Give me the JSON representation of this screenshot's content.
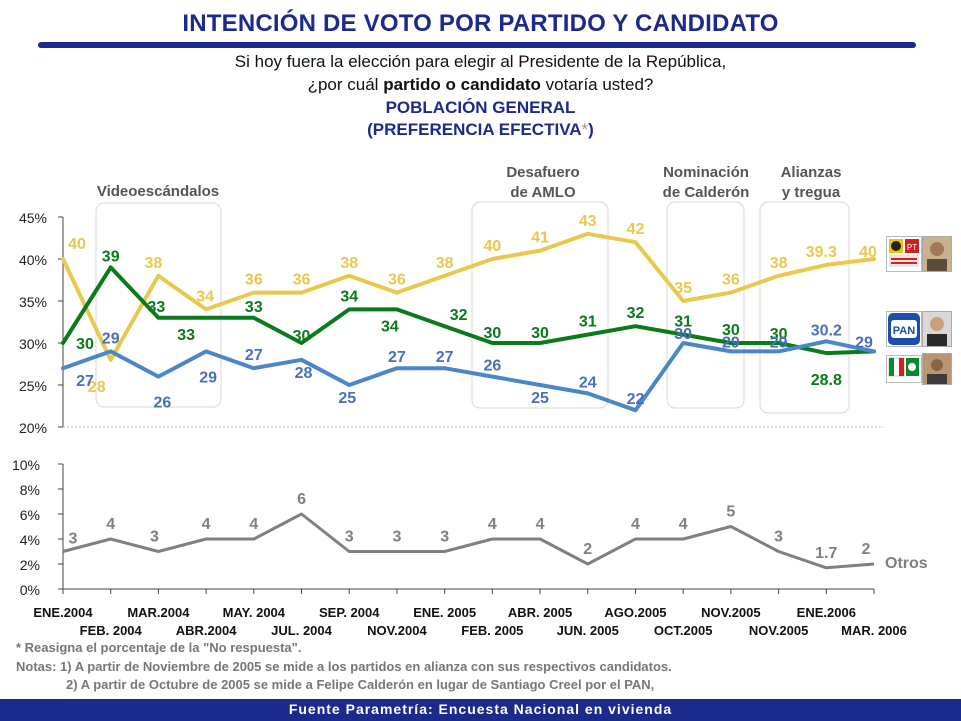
{
  "header": {
    "title": "INTENCIÓN DE VOTO POR PARTIDO Y CANDIDATO",
    "question_line1": "Si hoy fuera la elección para elegir al Presidente de la República,",
    "question_line2_pre": "¿por cuál ",
    "question_line2_bold": "partido o candidato",
    "question_line2_post": " votaría usted?",
    "population": "POBLACIÓN GENERAL",
    "effective_pre": "(PREFERENCIA EFECTIVA",
    "effective_star": "*",
    "effective_post": ")"
  },
  "chart_data": [
    {
      "type": "line",
      "ylim": [
        20,
        45
      ],
      "yticks": [
        "20%",
        "25%",
        "30%",
        "35%",
        "40%",
        "45%"
      ],
      "x_labels_top": [
        "ENE.2004",
        "MAR.2004",
        "MAY. 2004",
        "SEP. 2004",
        "ENE. 2005",
        "ABR. 2005",
        "AGO.2005",
        "NOV.2005",
        "ENE.2006"
      ],
      "x_labels_bottom": [
        "FEB. 2004",
        "ABR.2004",
        "JUL. 2004",
        "NOV.2004",
        "FEB. 2005",
        "JUN. 2005",
        "OCT.2005",
        "NOV.2005",
        "MAR. 2006"
      ],
      "series": [
        {
          "color": "#e8c94e",
          "values": [
            40,
            28,
            38,
            34,
            36,
            36,
            38,
            36,
            38,
            40,
            41,
            43,
            42,
            35,
            36,
            38,
            39.3,
            40
          ],
          "labels": [
            "40",
            "28",
            "38",
            "34",
            "36",
            "36",
            "38",
            "36",
            "38",
            "40",
            "41",
            "43",
            "42",
            "35",
            "36",
            "38",
            "39.3",
            "40"
          ]
        },
        {
          "color": "#0a7a1a",
          "values": [
            30,
            39,
            33,
            33,
            33,
            30,
            34,
            34,
            32,
            30,
            30,
            31,
            32,
            31,
            30,
            30,
            28.8,
            29
          ],
          "labels": [
            "30",
            "39",
            "33",
            "33",
            "33",
            "30",
            "34",
            "34",
            "32",
            "30",
            "30",
            "31",
            "32",
            "31",
            "30",
            "30",
            "28.8",
            ""
          ]
        },
        {
          "color": "#4a86c8",
          "values": [
            27,
            29,
            26,
            29,
            27,
            28,
            25,
            27,
            27,
            26,
            25,
            24,
            22,
            30,
            29,
            29,
            30.2,
            29
          ],
          "labels": [
            "27",
            "29",
            "26",
            "29",
            "27",
            "28",
            "25",
            "27",
            "27",
            "26",
            "25",
            "24",
            "22",
            "30",
            "29",
            "29",
            "30.2",
            "29"
          ]
        }
      ],
      "annotations": [
        {
          "lines": [
            "Videoescándalos"
          ]
        },
        {
          "lines": [
            "Desafuero",
            "de AMLO"
          ]
        },
        {
          "lines": [
            "Nominación",
            "de Calderón"
          ]
        },
        {
          "lines": [
            "Alianzas",
            "y tregua"
          ]
        }
      ]
    },
    {
      "type": "line",
      "ylim": [
        0,
        10
      ],
      "yticks": [
        "0%",
        "2%",
        "4%",
        "6%",
        "8%",
        "10%"
      ],
      "series": [
        {
          "name": "Otros",
          "color": "#808080",
          "values": [
            3,
            4,
            3,
            4,
            4,
            6,
            3,
            3,
            3,
            4,
            4,
            2,
            4,
            4,
            5,
            3,
            1.7,
            2
          ],
          "labels": [
            "3",
            "4",
            "3",
            "4",
            "4",
            "6",
            "3",
            "3",
            "3",
            "4",
            "4",
            "2",
            "4",
            "4",
            "5",
            "3",
            "1.7",
            "2"
          ]
        }
      ]
    }
  ],
  "legend": {
    "pan_logo": "PAN",
    "prd_logo_icon": "prd-pt-convergencia-logo",
    "pri_logo_icon": "pri-pvem-logo"
  },
  "notes": {
    "line1": "* Reasigna el porcentaje de la \"No respuesta\".",
    "line2": "Notas: 1) A partir de Noviembre de 2005  se mide a los partidos en alianza con sus respectivos candidatos.",
    "line3": "2) A partir de Octubre de 2005 se mide a Felipe Calderón en lugar de Santiago Creel por el PAN,"
  },
  "footer": "Fuente Parametría: Encuesta Nacional en vivienda"
}
